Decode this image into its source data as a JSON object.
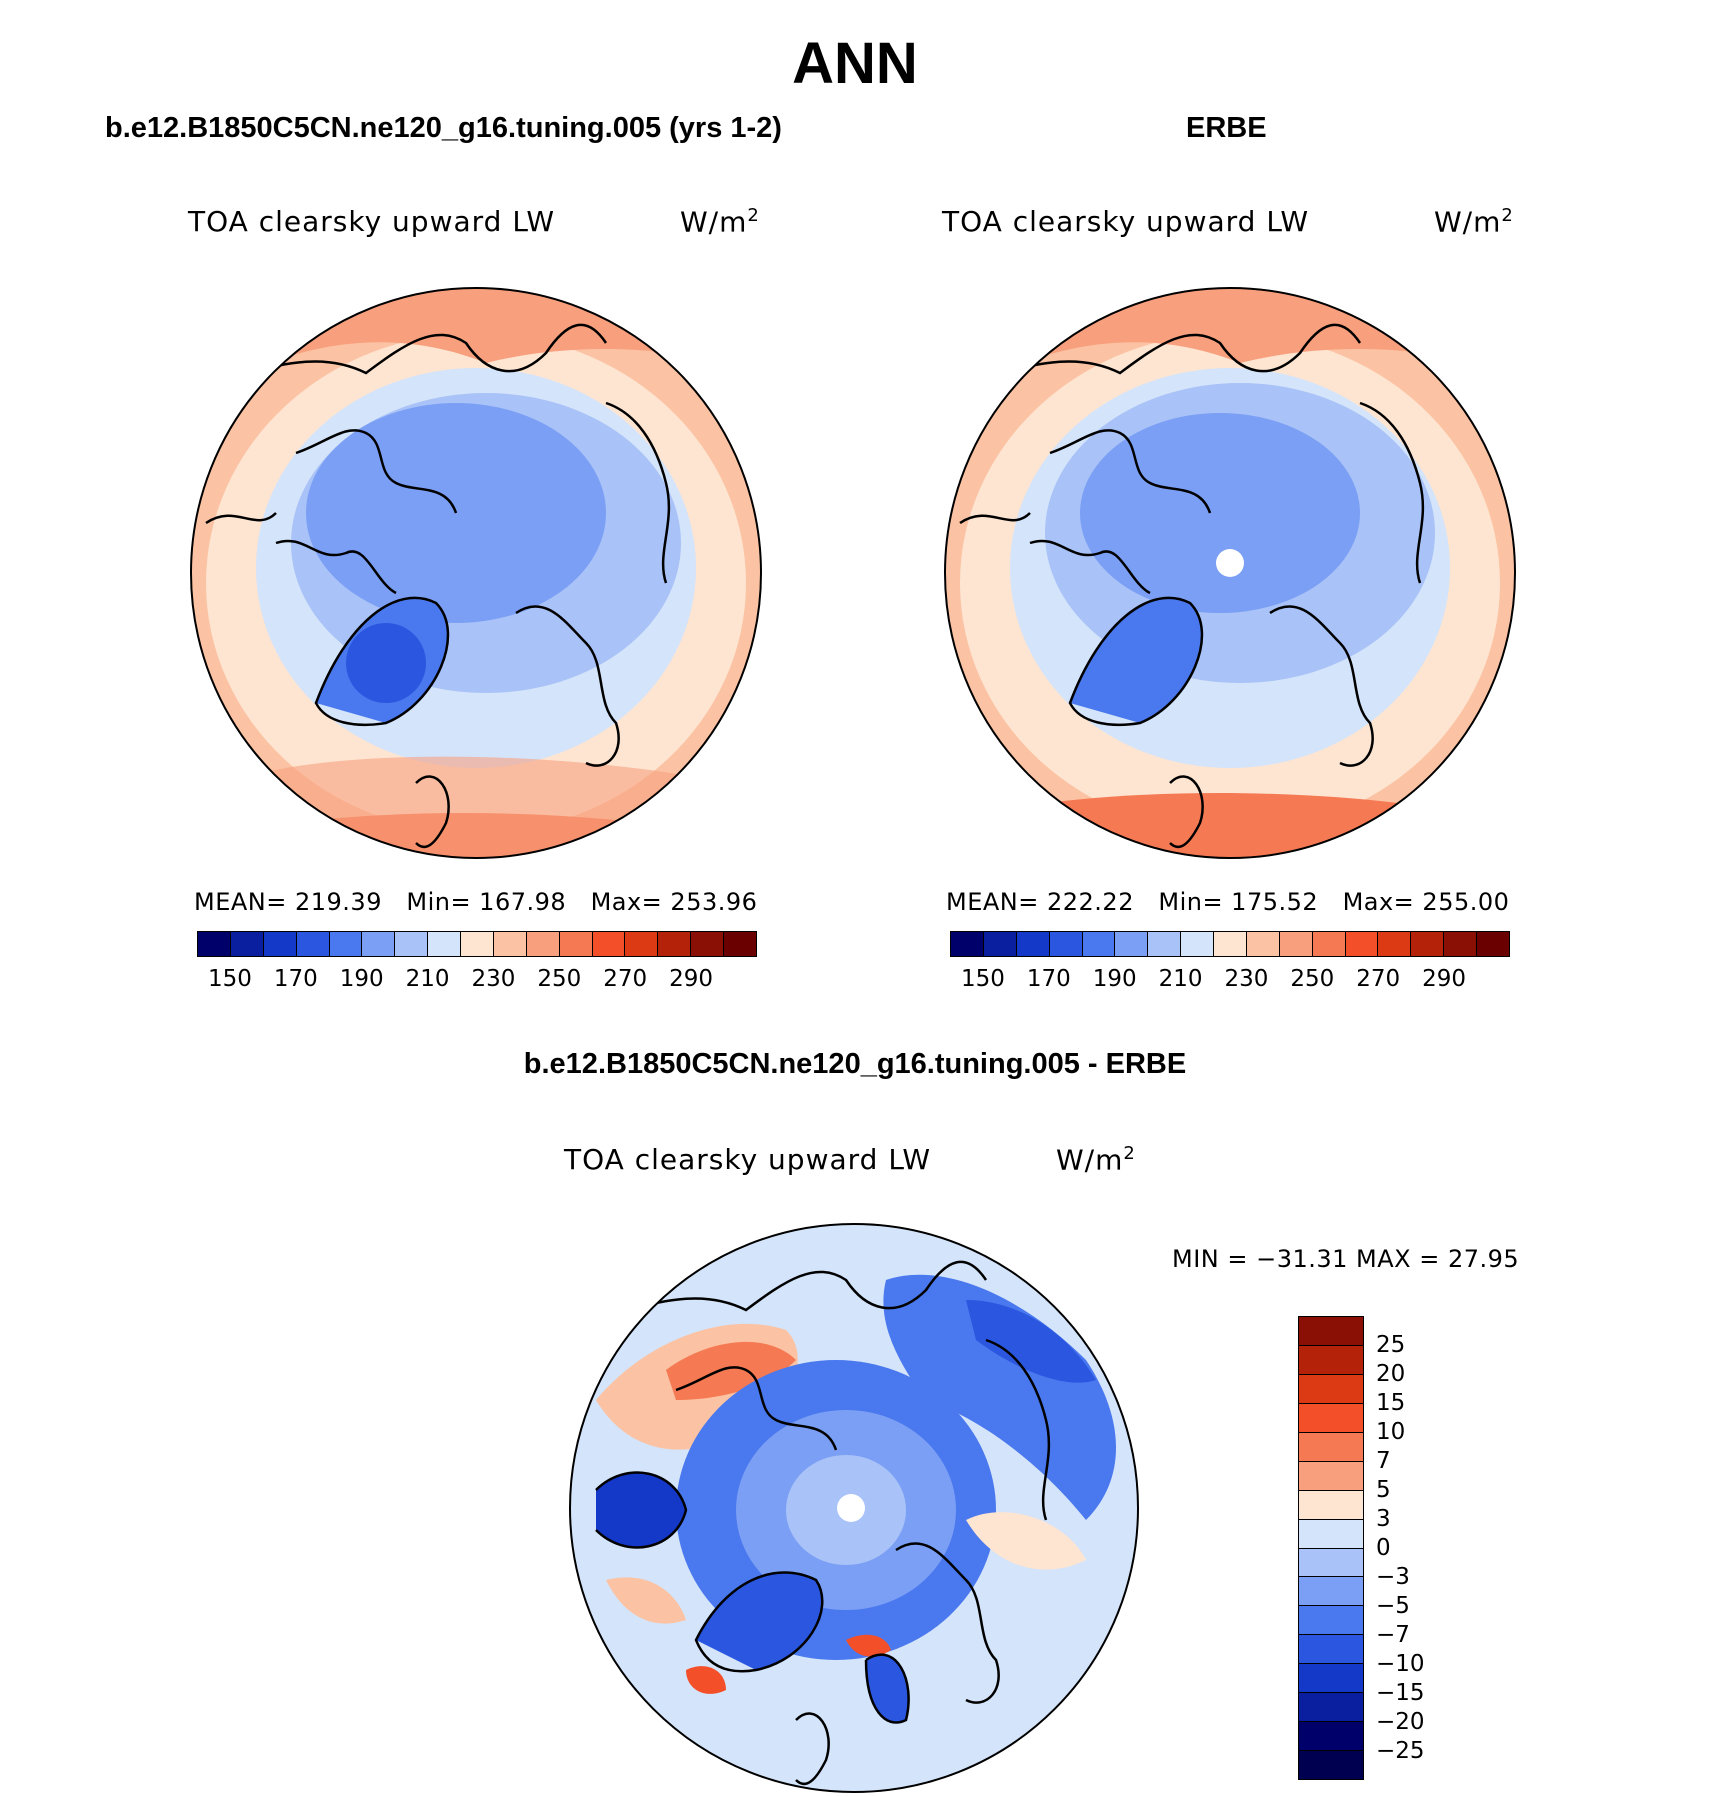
{
  "figure": {
    "title": "ANN",
    "panels": [
      {
        "title": "b.e12.B1850C5CN.ne120_g16.tuning.005 (yrs 1-2)",
        "variable": "TOA clearsky upward LW",
        "units": "W/m",
        "units_exp": "2",
        "stats": {
          "mean": "MEAN= 219.39",
          "min": "Min= 167.98",
          "max": "Max= 253.96"
        }
      },
      {
        "title": "ERBE",
        "variable": "TOA clearsky upward LW",
        "units": "W/m",
        "units_exp": "2",
        "stats": {
          "mean": "MEAN= 222.22",
          "min": "Min= 175.52",
          "max": "Max= 255.00"
        }
      },
      {
        "title": "b.e12.B1850C5CN.ne120_g16.tuning.005 - ERBE",
        "variable": "TOA clearsky upward LW",
        "units": "W/m",
        "units_exp": "2",
        "stats": {
          "minmax": "MIN = −31.31 MAX =  27.95"
        }
      }
    ],
    "colorbar_abs": {
      "colors": [
        "#00006b",
        "#0a1ea0",
        "#1438c8",
        "#2a56e0",
        "#4a78ee",
        "#7b9ff4",
        "#a9c2f7",
        "#d4e4fa",
        "#fde5d2",
        "#fbc3a3",
        "#f8a07e",
        "#f57a54",
        "#f35029",
        "#dc3a14",
        "#b5220a",
        "#8a0f05",
        "#6b0000"
      ],
      "tick_labels": [
        "150",
        "170",
        "190",
        "210",
        "230",
        "250",
        "270",
        "290"
      ],
      "tick_values": [
        150,
        170,
        190,
        210,
        230,
        250,
        270,
        290
      ],
      "range": [
        130,
        300
      ]
    },
    "colorbar_diff": {
      "colors": [
        "#8a0f05",
        "#b5220a",
        "#dc3a14",
        "#f35029",
        "#f57a54",
        "#f8a07e",
        "#fde5d2",
        "#d4e4fa",
        "#a9c2f7",
        "#7b9ff4",
        "#4a78ee",
        "#2a56e0",
        "#1438c8",
        "#0a1ea0",
        "#00006b",
        "#000050"
      ],
      "labels": [
        "25",
        "20",
        "15",
        "10",
        "7",
        "5",
        "3",
        "0",
        "−3",
        "−5",
        "−7",
        "−10",
        "−15",
        "−20",
        "−25"
      ]
    },
    "map_icons": [
      "polar-stereographic-map"
    ]
  }
}
